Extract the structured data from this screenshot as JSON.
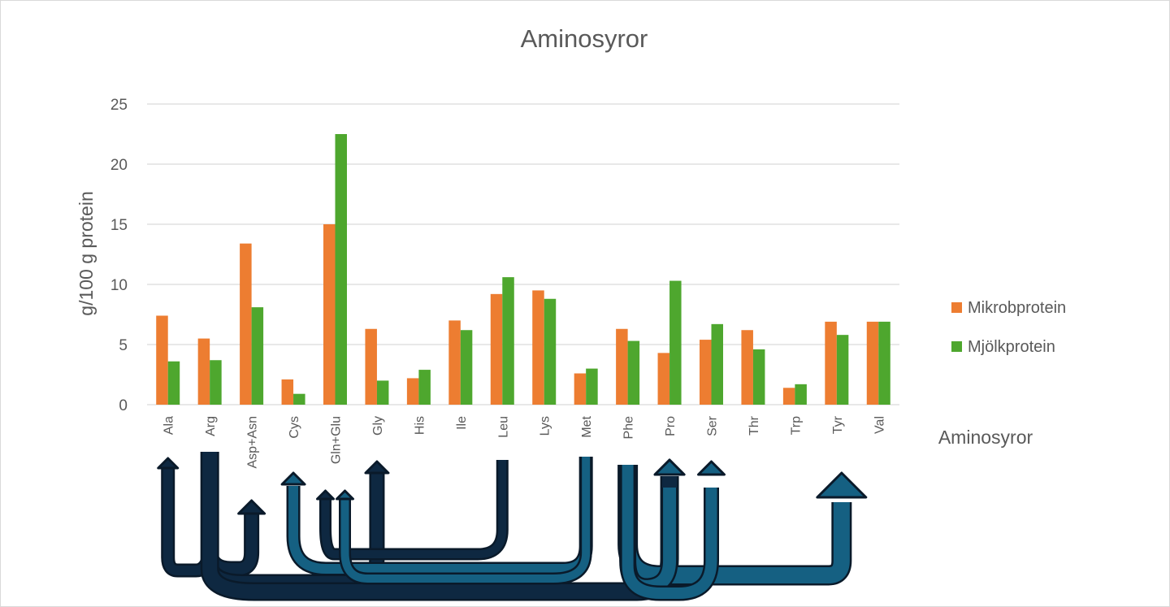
{
  "chart_data": {
    "type": "bar",
    "title": "Aminosyror",
    "xlabel": "Aminosyror",
    "ylabel": "g/100 g protein",
    "ylim": [
      0,
      25
    ],
    "yticks": [
      0,
      5,
      10,
      15,
      20,
      25
    ],
    "grid": true,
    "legend_position": "right",
    "categories": [
      "Ala",
      "Arg",
      "Asp+Asn",
      "Cys",
      "Gln+Glu",
      "Gly",
      "His",
      "Ile",
      "Leu",
      "Lys",
      "Met",
      "Phe",
      "Pro",
      "Ser",
      "Thr",
      "Trp",
      "Tyr",
      "Val"
    ],
    "series": [
      {
        "name": "Mikrobprotein",
        "color": "#ed7d31",
        "values": [
          7.4,
          5.5,
          13.4,
          2.1,
          15.0,
          6.3,
          2.2,
          7.0,
          9.2,
          9.5,
          2.6,
          6.3,
          4.3,
          5.4,
          6.2,
          1.4,
          6.9,
          6.9
        ]
      },
      {
        "name": "Mjölkprotein",
        "color": "#4ea72e",
        "values": [
          3.6,
          3.7,
          8.1,
          0.9,
          22.5,
          2.0,
          2.9,
          6.2,
          10.6,
          8.8,
          3.0,
          5.3,
          10.3,
          6.7,
          4.6,
          1.7,
          5.8,
          6.9
        ]
      }
    ],
    "annotations": [
      {
        "shape": "curved-arrow",
        "from": "Arg",
        "to": "Ala",
        "color": "#0e2841"
      },
      {
        "shape": "curved-arrow",
        "from": "Arg",
        "to": "Asp+Asn",
        "color": "#0e2841"
      },
      {
        "shape": "curved-arrow",
        "from": "Arg",
        "to": "Gly",
        "color": "#0e2841"
      },
      {
        "shape": "curved-arrow",
        "from": "Arg",
        "to": "Pro",
        "color": "#0e2841"
      },
      {
        "shape": "curved-arrow",
        "from": "Leu",
        "to": "Gln+Glu",
        "color": "#0e2841"
      },
      {
        "shape": "curved-arrow",
        "from": "Met",
        "to": "Cys",
        "color": "#156082"
      },
      {
        "shape": "curved-arrow",
        "from": "Phe",
        "to": "Tyr",
        "color": "#156082"
      },
      {
        "shape": "curved-arrow",
        "from": "Phe",
        "to": "Pro",
        "color": "#156082"
      },
      {
        "shape": "curved-arrow",
        "from": "Phe",
        "to": "Ser",
        "color": "#156082"
      },
      {
        "shape": "curved-arrow",
        "from": "Met",
        "to": "Gln+Glu",
        "color": "#156082"
      }
    ]
  }
}
